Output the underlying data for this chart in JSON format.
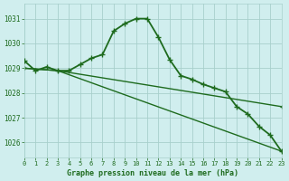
{
  "title": "Graphe pression niveau de la mer (hPa)",
  "background_color": "#d0eeee",
  "grid_color": "#a8d0cc",
  "line_color": "#1e6b1e",
  "xlim": [
    0,
    23
  ],
  "ylim": [
    1025.4,
    1031.6
  ],
  "yticks": [
    1026,
    1027,
    1028,
    1029,
    1030,
    1031
  ],
  "xticks": [
    0,
    1,
    2,
    3,
    4,
    5,
    6,
    7,
    8,
    9,
    10,
    11,
    12,
    13,
    14,
    15,
    16,
    17,
    18,
    19,
    20,
    21,
    22,
    23
  ],
  "series": [
    {
      "x": [
        0,
        1,
        2,
        3,
        4,
        5,
        6,
        7,
        8,
        9,
        10,
        11,
        12,
        13,
        14,
        15,
        16,
        17,
        18,
        19,
        20,
        21,
        22,
        23
      ],
      "y": [
        1029.3,
        1028.9,
        1029.05,
        1028.9,
        1028.9,
        1029.15,
        1029.4,
        1029.55,
        1030.5,
        1030.8,
        1031.0,
        1031.0,
        1030.25,
        1029.35,
        1028.7,
        1028.55,
        1028.35,
        1028.2,
        1028.05,
        1027.45,
        1027.15,
        1026.65,
        1026.3,
        1025.65
      ],
      "linewidth": 1.3,
      "markersize": 4.5
    },
    {
      "x": [
        0,
        3,
        23
      ],
      "y": [
        1029.0,
        1028.9,
        1027.45
      ],
      "linewidth": 1.0,
      "markersize": 3.5
    },
    {
      "x": [
        0,
        3,
        23
      ],
      "y": [
        1029.0,
        1028.9,
        1025.65
      ],
      "linewidth": 1.0,
      "markersize": 3.5
    }
  ]
}
